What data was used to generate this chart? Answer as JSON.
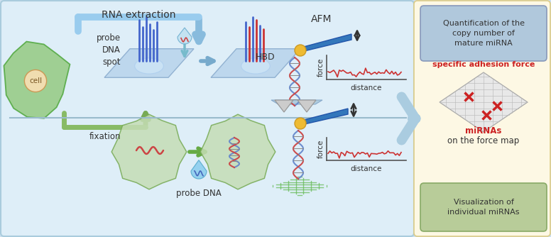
{
  "bg_outer": "#cde0f0",
  "bg_main": "#deeef8",
  "bg_right": "#fdf8e4",
  "box1_color": "#aec8de",
  "box2_color": "#b8cc99",
  "text_red": "#cc2222",
  "text_dark": "#333333",
  "arrow_blue": "#88bbdd",
  "arrow_green": "#77aa55",
  "sep_color": "#99bbcc",
  "title_rna": "RNA extraction",
  "label_probe": "probe\nDNA\nspot",
  "label_afm": "AFM",
  "label_hbd": "HBD",
  "label_force": "force",
  "label_distance": "distance",
  "label_probe_dna": "probe DNA",
  "label_fixation": "fixation",
  "label_cell": "cell",
  "box1_text": "Quantification of the\ncopy number of\nmature miRNA",
  "label_adhesion": "specific adhesion force",
  "label_mirnas_red": "miRNAs",
  "label_mirnas_black": "on the force map",
  "box2_text": "Visualization of\nindividual miRNAs",
  "figsize": [
    7.76,
    3.34
  ],
  "dpi": 100
}
